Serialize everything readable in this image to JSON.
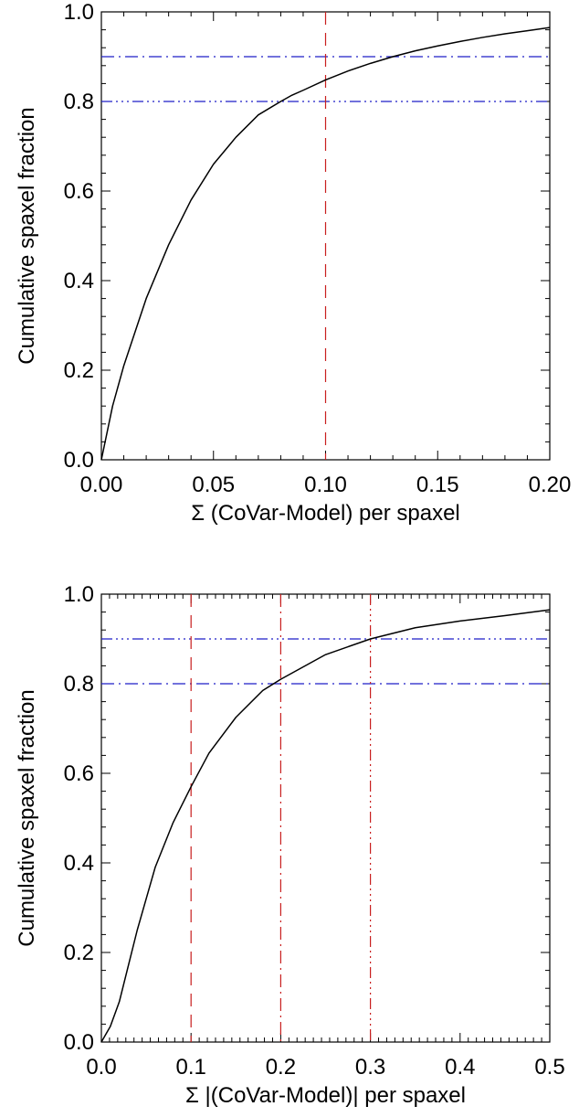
{
  "chart_data": [
    {
      "type": "line",
      "xlabel": "Σ (CoVar-Model) per spaxel",
      "ylabel": "Cumulative spaxel fraction",
      "xlim": [
        0.0,
        0.2
      ],
      "ylim": [
        0.0,
        1.0
      ],
      "xticks": [
        "0.00",
        "0.05",
        "0.10",
        "0.15",
        "0.20"
      ],
      "yticks": [
        "0.0",
        "0.2",
        "0.4",
        "0.6",
        "0.8",
        "1.0"
      ],
      "series": [
        {
          "color": "#000000",
          "x": [
            0.0,
            0.005,
            0.01,
            0.02,
            0.03,
            0.04,
            0.05,
            0.06,
            0.07,
            0.08,
            0.085,
            0.09,
            0.1,
            0.11,
            0.12,
            0.13,
            0.14,
            0.15,
            0.16,
            0.17,
            0.18,
            0.19,
            0.2
          ],
          "y": [
            0.0,
            0.12,
            0.21,
            0.36,
            0.48,
            0.58,
            0.66,
            0.72,
            0.77,
            0.8,
            0.814,
            0.825,
            0.848,
            0.868,
            0.885,
            0.9,
            0.913,
            0.924,
            0.934,
            0.943,
            0.951,
            0.958,
            0.965
          ]
        }
      ],
      "hlines": [
        {
          "y": 0.9,
          "color": "#1f1fc8",
          "style": "dashdot"
        },
        {
          "y": 0.8,
          "color": "#1f1fc8",
          "style": "dashdotdot"
        }
      ],
      "vlines": [
        {
          "x": 0.1,
          "color": "#c81e1e",
          "style": "dashed"
        }
      ]
    },
    {
      "type": "line",
      "xlabel": "Σ |(CoVar-Model)| per spaxel",
      "ylabel": "Cumulative spaxel fraction",
      "xlim": [
        0.0,
        0.5
      ],
      "ylim": [
        0.0,
        1.0
      ],
      "xticks": [
        "0.0",
        "0.1",
        "0.2",
        "0.3",
        "0.4",
        "0.5"
      ],
      "yticks": [
        "0.0",
        "0.2",
        "0.4",
        "0.6",
        "0.8",
        "1.0"
      ],
      "series": [
        {
          "color": "#000000",
          "x": [
            0.0,
            0.01,
            0.02,
            0.03,
            0.04,
            0.05,
            0.06,
            0.08,
            0.1,
            0.12,
            0.15,
            0.18,
            0.2,
            0.25,
            0.3,
            0.35,
            0.4,
            0.45,
            0.5
          ],
          "y": [
            0.0,
            0.035,
            0.09,
            0.17,
            0.25,
            0.32,
            0.39,
            0.49,
            0.57,
            0.645,
            0.725,
            0.785,
            0.81,
            0.865,
            0.9,
            0.925,
            0.94,
            0.952,
            0.965
          ]
        }
      ],
      "hlines": [
        {
          "y": 0.9,
          "color": "#1f1fc8",
          "style": "dashdotdot"
        },
        {
          "y": 0.8,
          "color": "#1f1fc8",
          "style": "dashdot"
        }
      ],
      "vlines": [
        {
          "x": 0.1,
          "color": "#c81e1e",
          "style": "dashed"
        },
        {
          "x": 0.2,
          "color": "#c81e1e",
          "style": "dashdot"
        },
        {
          "x": 0.3,
          "color": "#c81e1e",
          "style": "dashdotdot"
        }
      ]
    }
  ]
}
